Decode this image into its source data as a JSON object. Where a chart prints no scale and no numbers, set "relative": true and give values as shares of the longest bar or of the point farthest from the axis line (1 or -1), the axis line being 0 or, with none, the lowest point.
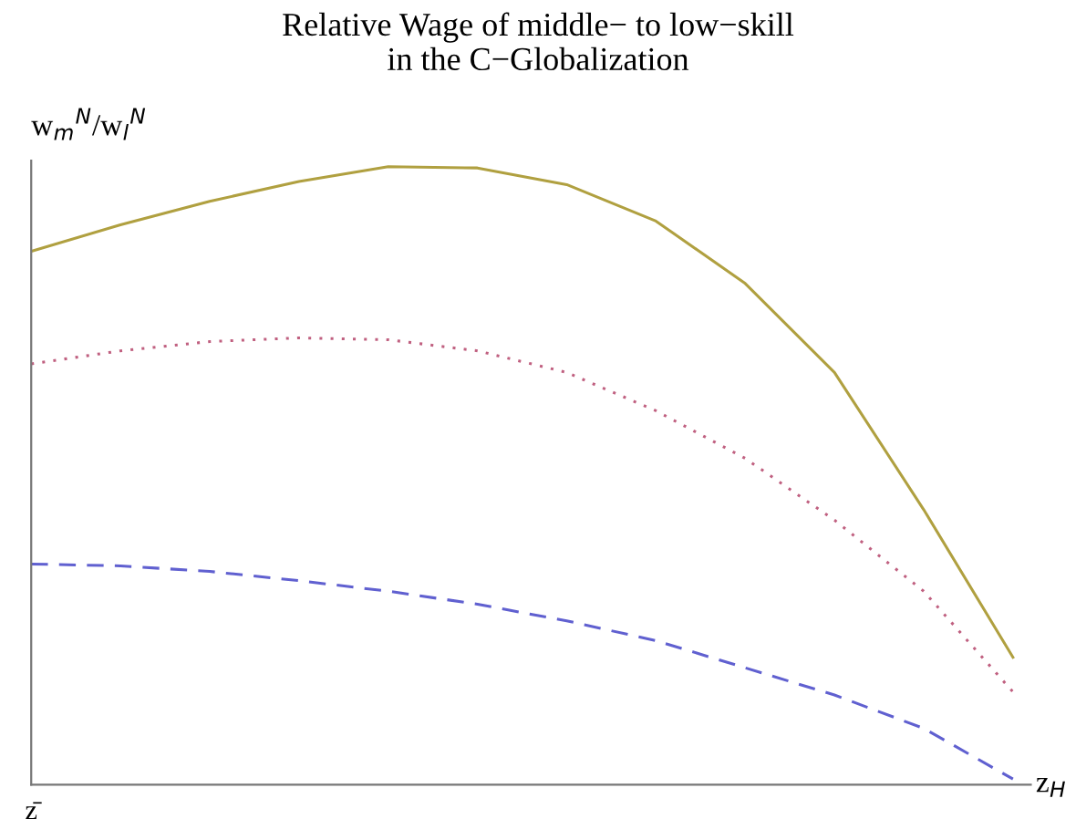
{
  "chart_data": {
    "type": "line",
    "title": "Relative Wage of middle− to low−skill\nin the C−Globalization",
    "xlabel": "z$_{H}$",
    "ylabel": "w$_{m}$$^{N}$/w$_{l}$$^{N}$",
    "relative": true,
    "annotations": [
      "z̄"
    ],
    "categories": [
      null,
      null,
      null,
      null,
      null,
      null,
      null,
      null,
      null,
      null,
      null,
      null
    ],
    "series": [
      {
        "color": "#b0a040",
        "line_style": "solid",
        "values": [
          0.863,
          0.906,
          0.944,
          0.976,
          1.0,
          0.998,
          0.971,
          0.912,
          0.811,
          0.667,
          0.445,
          0.206
        ]
      },
      {
        "color": "#c06080",
        "line_style": "dotted",
        "values": [
          0.681,
          0.702,
          0.717,
          0.723,
          0.72,
          0.702,
          0.667,
          0.605,
          0.528,
          0.428,
          0.313,
          0.15
        ]
      },
      {
        "color": "#6060d0",
        "line_style": "dashed",
        "values": [
          0.357,
          0.354,
          0.345,
          0.33,
          0.313,
          0.292,
          0.265,
          0.233,
          0.189,
          0.145,
          0.091,
          0.009
        ]
      }
    ]
  }
}
